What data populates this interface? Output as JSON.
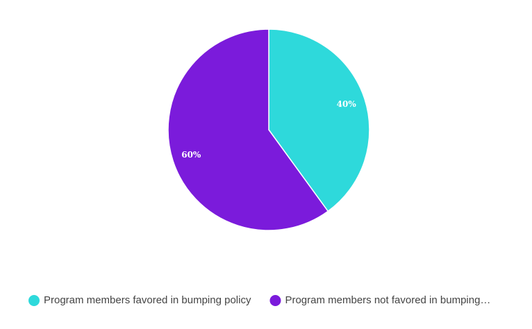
{
  "chart_data": {
    "type": "pie",
    "categories": [
      "Program members favored in bumping policy",
      "Program members not favored in bumping…"
    ],
    "values": [
      40,
      60
    ],
    "value_labels": [
      "40%",
      "60%"
    ],
    "colors": [
      "#2ed9db",
      "#7b1bdb"
    ],
    "start": "top",
    "direction": "clockwise",
    "legend": "bottom"
  }
}
